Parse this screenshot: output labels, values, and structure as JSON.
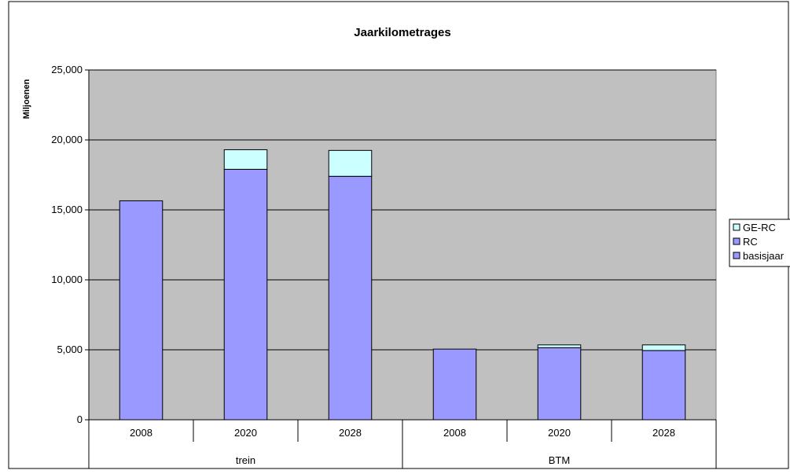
{
  "chart_data": {
    "type": "bar",
    "stacked": true,
    "title": "Jaarkilometrages",
    "ylabel": "Miljoenen",
    "xlabel": "",
    "ylim": [
      0,
      25000
    ],
    "yticks": [
      0,
      5000,
      10000,
      15000,
      20000,
      25000
    ],
    "ytick_labels": [
      "0",
      "5,000",
      "10,000",
      "15,000",
      "20,000",
      "25,000"
    ],
    "grid": true,
    "legend_position": "right",
    "groups": [
      {
        "label": "trein",
        "categories": [
          "2008",
          "2020",
          "2028"
        ]
      },
      {
        "label": "BTM",
        "categories": [
          "2008",
          "2020",
          "2028"
        ]
      }
    ],
    "categories": [
      "2008",
      "2020",
      "2028",
      "2008",
      "2020",
      "2028"
    ],
    "series": [
      {
        "name": "basisjaar",
        "color": "#9999ff",
        "values": [
          15650,
          17900,
          17400,
          5050,
          5150,
          4950
        ]
      },
      {
        "name": "RC",
        "color": "#9999ff",
        "values": [
          0,
          0,
          0,
          0,
          0,
          0
        ]
      },
      {
        "name": "GE-RC",
        "color": "#ccffff",
        "values": [
          0,
          1400,
          1850,
          0,
          200,
          400
        ]
      }
    ],
    "legend": [
      "GE-RC",
      "RC",
      "basisjaar"
    ],
    "plot_background": "#c0c0c0"
  }
}
